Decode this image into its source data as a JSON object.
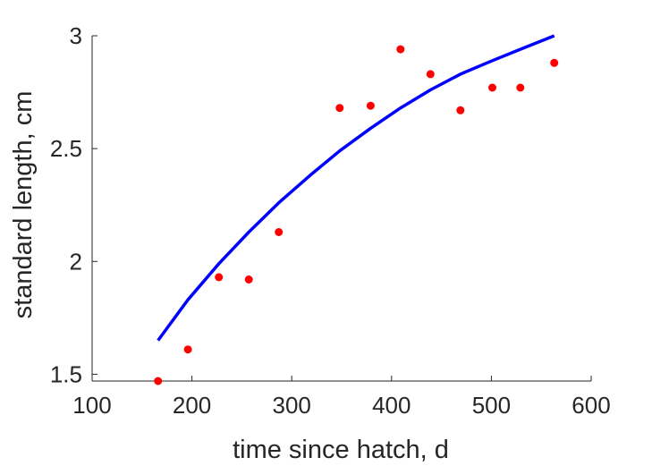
{
  "chart_data": {
    "type": "scatter",
    "title": "",
    "xlabel": "time since hatch, d",
    "ylabel": "standard length, cm",
    "xlim": [
      100,
      600
    ],
    "ylim": [
      1.47,
      3.0
    ],
    "xticks": [
      100,
      200,
      300,
      400,
      500,
      600
    ],
    "xtick_labels": [
      "100",
      "200",
      "300",
      "400",
      "500",
      "600"
    ],
    "yticks": [
      1.5,
      2,
      2.5,
      3
    ],
    "ytick_labels": [
      "1.5",
      "2",
      "2.5",
      "3"
    ],
    "grid": false,
    "box": false,
    "series": [
      {
        "kind": "scatter",
        "color": "#ff0000",
        "x": [
          166,
          196,
          227,
          257,
          287,
          348,
          379,
          409,
          439,
          469,
          501,
          529,
          563
        ],
        "y": [
          1.47,
          1.61,
          1.93,
          1.92,
          2.13,
          2.68,
          2.69,
          2.94,
          2.83,
          2.67,
          2.77,
          2.77,
          2.88
        ]
      },
      {
        "kind": "line",
        "color": "#0000ff",
        "x": [
          166,
          196,
          227,
          257,
          287,
          318,
          348,
          379,
          409,
          439,
          469,
          501,
          529,
          563
        ],
        "y": [
          1.65,
          1.83,
          1.99,
          2.13,
          2.26,
          2.38,
          2.49,
          2.59,
          2.68,
          2.76,
          2.83,
          2.89,
          2.94,
          3.0
        ]
      }
    ]
  }
}
